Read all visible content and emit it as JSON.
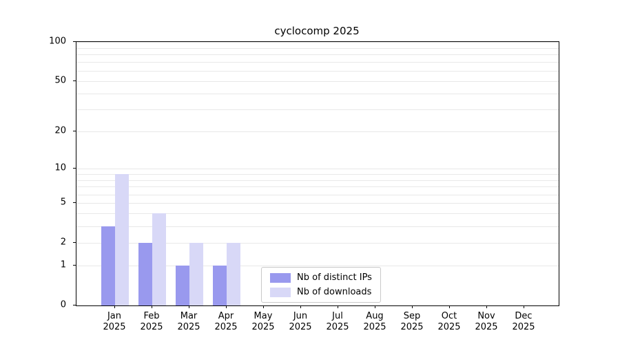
{
  "title": "cyclocomp 2025",
  "colors": {
    "ips_bar": "#9999ee",
    "downloads_bar": "#d8d8f7",
    "grid": "#e8e8e8",
    "axis": "#000000"
  },
  "chart_data": {
    "type": "bar",
    "title": "cyclocomp 2025",
    "scale": "log1p",
    "xlabel": "",
    "ylabel": "",
    "ylim": [
      0,
      100
    ],
    "yticks": [
      0,
      1,
      2,
      5,
      10,
      20,
      50,
      100
    ],
    "grid": "horizontal-minor",
    "legend_position": "lower center",
    "categories": [
      "Jan",
      "Feb",
      "Mar",
      "Apr",
      "May",
      "Jun",
      "Jul",
      "Aug",
      "Sep",
      "Oct",
      "Nov",
      "Dec"
    ],
    "category_sub": "2025",
    "series": [
      {
        "name": "Nb of distinct IPs",
        "color": "#9999ee",
        "values": [
          3,
          2,
          1,
          1,
          0,
          0,
          0,
          0,
          0,
          0,
          0,
          0
        ]
      },
      {
        "name": "Nb of downloads",
        "color": "#d8d8f7",
        "values": [
          9,
          4,
          2,
          2,
          0,
          0,
          0,
          0,
          0,
          0,
          0,
          0
        ]
      }
    ]
  }
}
